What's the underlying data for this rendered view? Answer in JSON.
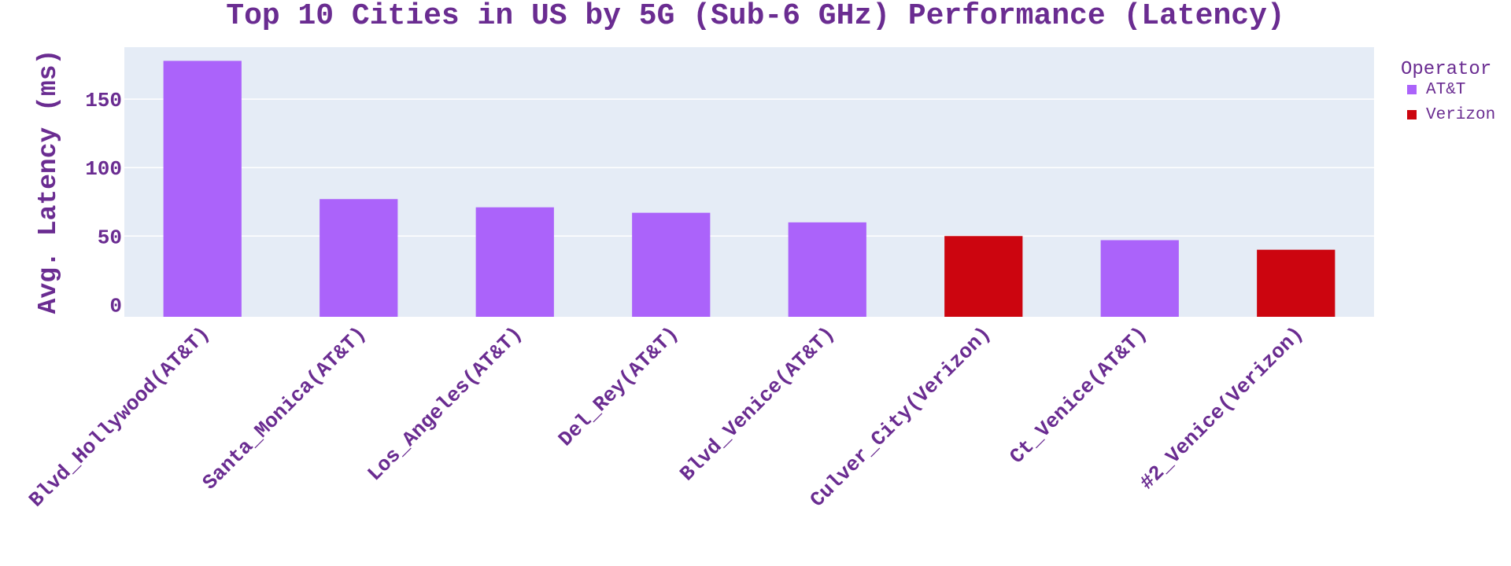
{
  "chart_data": {
    "type": "bar",
    "title": "Top 10 Cities in US by 5G (Sub-6 GHz) Performance (Latency)",
    "xlabel": "",
    "ylabel": "Avg. Latency (ms)",
    "ylim": [
      -9,
      188
    ],
    "yticks": [
      0,
      50,
      100,
      150
    ],
    "grid": true,
    "legend_position": "top-right",
    "legend_title": "Operator",
    "categories": [
      "Blvd_Hollywood(AT&T)",
      "Santa_Monica(AT&T)",
      "Los_Angeles(AT&T)",
      "Del_Rey(AT&T)",
      "Blvd_Venice(AT&T)",
      "Culver_City(Verizon)",
      "Ct_Venice(AT&T)",
      "#2_Venice(Verizon)"
    ],
    "values": [
      178,
      77,
      71,
      67,
      60,
      50,
      47,
      40
    ],
    "bar_operator": [
      "AT&T",
      "AT&T",
      "AT&T",
      "AT&T",
      "AT&T",
      "Verizon",
      "AT&T",
      "Verizon"
    ],
    "series": [
      {
        "name": "AT&T",
        "color": "#ab63fa"
      },
      {
        "name": "Verizon",
        "color": "#cc050f"
      }
    ],
    "colors": {
      "text": "#6a2c91",
      "plot_background": "#e5ecf6",
      "gridline": "#ffffff"
    }
  }
}
